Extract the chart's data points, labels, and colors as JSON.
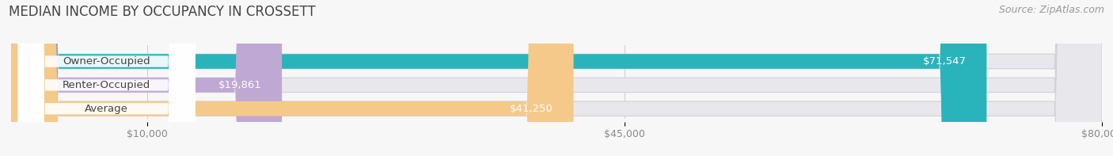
{
  "title": "MEDIAN INCOME BY OCCUPANCY IN CROSSETT",
  "source": "Source: ZipAtlas.com",
  "categories": [
    "Owner-Occupied",
    "Renter-Occupied",
    "Average"
  ],
  "values": [
    71547,
    19861,
    41250
  ],
  "labels": [
    "$71,547",
    "$19,861",
    "$41,250"
  ],
  "bar_colors": [
    "#29b4bc",
    "#c0a8d4",
    "#f5c98a"
  ],
  "bar_bg_color": "#e8e8ec",
  "bar_outline_color": "#d0d0d8",
  "xlim": [
    0,
    80000
  ],
  "xmin": 0,
  "xmax": 80000,
  "xticks": [
    10000,
    45000,
    80000
  ],
  "xtick_labels": [
    "$10,000",
    "$45,000",
    "$80,000"
  ],
  "title_fontsize": 12,
  "source_fontsize": 9,
  "bar_label_fontsize": 9.5,
  "value_label_fontsize": 9.5,
  "bar_height": 0.62,
  "fig_bg": "#f7f7f7",
  "figsize": [
    14.06,
    1.97
  ],
  "dpi": 100
}
